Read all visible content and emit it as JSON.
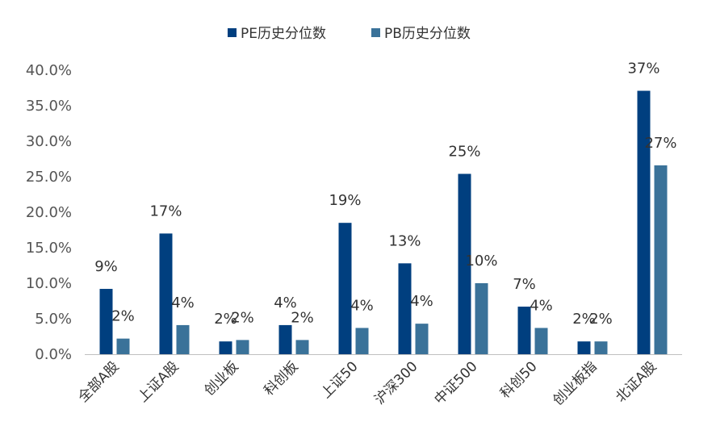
{
  "chart_data": {
    "type": "bar",
    "title": "",
    "xlabel": "",
    "ylabel": "",
    "ylim": [
      0,
      40
    ],
    "y_ticks": [
      "0.0%",
      "5.0%",
      "10.0%",
      "15.0%",
      "20.0%",
      "25.0%",
      "30.0%",
      "35.0%",
      "40.0%"
    ],
    "grid": false,
    "legend_position": "top-center",
    "categories": [
      "全部A股",
      "上证A股",
      "创业板",
      "科创板",
      "上证50",
      "沪深300",
      "中证500",
      "科创50",
      "创业板指",
      "北证A股"
    ],
    "series": [
      {
        "name": "PE历史分位数",
        "color": "#003f7f",
        "values": [
          9.2,
          17.0,
          1.8,
          4.1,
          18.5,
          12.8,
          25.4,
          6.7,
          1.8,
          37.1
        ],
        "labels": [
          "9%",
          "17%",
          "2%",
          "4%",
          "19%",
          "13%",
          "25%",
          "7%",
          "2%",
          "37%"
        ]
      },
      {
        "name": "PB历史分位数",
        "color": "#3a7299",
        "values": [
          2.2,
          4.1,
          2.0,
          2.0,
          3.7,
          4.3,
          10.0,
          3.7,
          1.8,
          26.6
        ],
        "labels": [
          "2%",
          "4%",
          "2%",
          "2%",
          "4%",
          "4%",
          "10%",
          "4%",
          "2%",
          "27%"
        ]
      }
    ]
  }
}
